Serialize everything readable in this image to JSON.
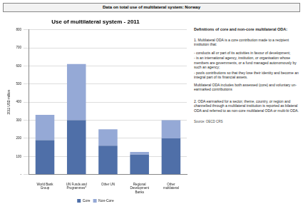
{
  "header": "Data on total use of multilateral system: Norway",
  "chart_data": {
    "type": "bar",
    "title": "Use of multilateral system - 2011",
    "y_label": "2011 USD million",
    "categories": [
      "World Bank Group",
      "UN Funds and Programmes*",
      "Other UN",
      "Regional Development Banks",
      "Other multilateral"
    ],
    "series": [
      {
        "name": "Core",
        "color": "#4f6fa8",
        "values": [
          190,
          300,
          160,
          110,
          200
        ]
      },
      {
        "name": "Non-Core",
        "color": "#95a9d6",
        "values": [
          140,
          310,
          90,
          15,
          100
        ]
      }
    ],
    "stacked": true,
    "ylim": [
      0,
      800
    ],
    "yticks": [
      {
        "value": 0,
        "label": "-"
      },
      100,
      200,
      300,
      400,
      500,
      600,
      700,
      800
    ],
    "grid": true,
    "legend": "bottom"
  },
  "notes": {
    "title": "Definitions of core and non-core multilateral ODA:",
    "paragraphs": [
      "1. Multilateral ODA is a core contribution made to a recipient institution that:",
      "- conducts all or part of its activities in favour of development;",
      "- is an international agency, institution, or organisation whose members are governments, or a fund managed autonomously by such an agency;",
      "- pools contributions so that they lose their identity and become an integral part of its financial assets.",
      "Multilateral ODA includes both assessed (core) and voluntary un-earmarked contributions",
      "2. ODA earmarked for a sector, theme, country, or region and channelled through a multilateral institution is reported as bilateral ODA and referred to as non-core multilateral ODA or multi-bi ODA."
    ],
    "source": "Source: OECD CRS"
  }
}
